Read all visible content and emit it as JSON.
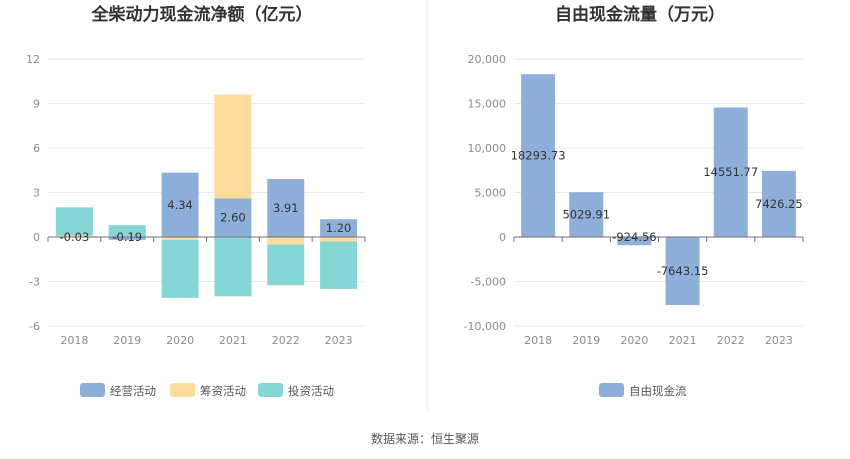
{
  "source": "数据来源：恒生聚源",
  "chart_data": [
    {
      "type": "bar",
      "stacked": true,
      "title": "全柴动力现金流净额（亿元）",
      "categories": [
        "2018",
        "2019",
        "2020",
        "2021",
        "2022",
        "2023"
      ],
      "ylim": [
        -6,
        12
      ],
      "yticks": [
        "-6",
        "-3",
        "0",
        "3",
        "6",
        "9",
        "12"
      ],
      "grid": true,
      "legend_position": "bottom",
      "series": [
        {
          "name": "经营活动",
          "color": "#8fafdb",
          "values": [
            -0.03,
            -0.19,
            4.34,
            2.6,
            3.91,
            1.2
          ],
          "labels": [
            "-0.03",
            "-0.19",
            "4.34",
            "2.60",
            "3.91",
            "1.20"
          ]
        },
        {
          "name": "筹资活动",
          "color": "#ffdb9c",
          "values": [
            0.1,
            0.05,
            -0.2,
            7.0,
            -0.5,
            -0.3
          ]
        },
        {
          "name": "投资活动",
          "color": "#86d6d6",
          "values": [
            1.9,
            0.75,
            -3.9,
            -4.0,
            -2.75,
            -3.2
          ]
        }
      ]
    },
    {
      "type": "bar",
      "title": "自由现金流量（万元）",
      "categories": [
        "2018",
        "2019",
        "2020",
        "2021",
        "2022",
        "2023"
      ],
      "ylim": [
        -10000,
        20000
      ],
      "yticks": [
        "-10,000",
        "-5,000",
        "0",
        "5,000",
        "10,000",
        "15,000",
        "20,000"
      ],
      "grid": true,
      "legend_position": "bottom",
      "series": [
        {
          "name": "自由现金流",
          "color": "#8fafdb",
          "values": [
            18293.73,
            5029.91,
            -924.56,
            -7643.15,
            14551.77,
            7426.25
          ],
          "labels": [
            "18293.73",
            "5029.91",
            "-924.56",
            "-7643.15",
            "14551.77",
            "7426.25"
          ]
        }
      ]
    }
  ]
}
